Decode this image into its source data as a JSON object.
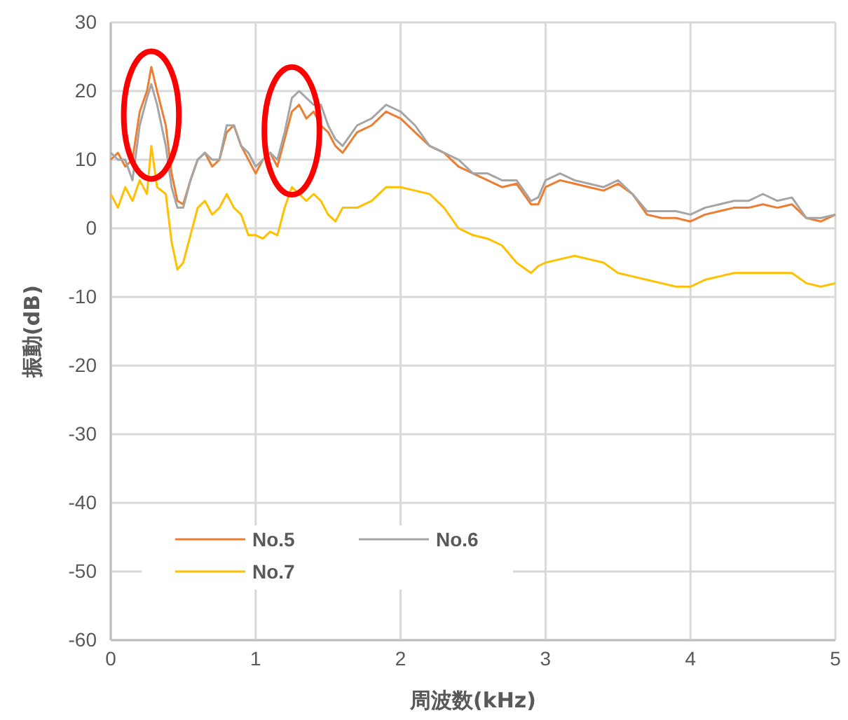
{
  "chart_data": {
    "type": "line",
    "xlabel": "周波数(kHz)",
    "ylabel": "振動(dB)",
    "x": [
      0,
      0.05,
      0.1,
      0.15,
      0.2,
      0.25,
      0.28,
      0.32,
      0.38,
      0.42,
      0.46,
      0.5,
      0.55,
      0.6,
      0.65,
      0.7,
      0.75,
      0.8,
      0.85,
      0.9,
      0.95,
      1.0,
      1.05,
      1.1,
      1.15,
      1.2,
      1.25,
      1.3,
      1.35,
      1.4,
      1.45,
      1.5,
      1.55,
      1.6,
      1.7,
      1.8,
      1.9,
      1.95,
      2.0,
      2.1,
      2.2,
      2.3,
      2.4,
      2.5,
      2.6,
      2.7,
      2.8,
      2.9,
      2.95,
      3.0,
      3.1,
      3.2,
      3.3,
      3.4,
      3.5,
      3.6,
      3.7,
      3.8,
      3.9,
      4.0,
      4.1,
      4.2,
      4.3,
      4.4,
      4.5,
      4.6,
      4.7,
      4.8,
      4.9,
      5.0
    ],
    "series": [
      {
        "name": "No.5",
        "color": "#ed7d31",
        "values": [
          10,
          11,
          9,
          10,
          17,
          20,
          23.5,
          20,
          15,
          8,
          4,
          3.5,
          7,
          10,
          11,
          9,
          10,
          14,
          15,
          12,
          10,
          8,
          10,
          11,
          9,
          13,
          17,
          18,
          16,
          17,
          15,
          14,
          12,
          11,
          14,
          15,
          17,
          16.5,
          16,
          14,
          12,
          11,
          9,
          8,
          7,
          6,
          6.5,
          3.5,
          3.5,
          6,
          7,
          6.5,
          6,
          5.5,
          6.5,
          5,
          2,
          1.5,
          1.5,
          1,
          2,
          2.5,
          3,
          3,
          3.5,
          3,
          3.5,
          1.5,
          1,
          2
        ]
      },
      {
        "name": "No.6",
        "color": "#a5a5a5",
        "values": [
          11,
          10,
          10,
          7,
          15,
          19,
          21,
          18,
          12,
          6,
          3,
          3,
          7,
          10,
          11,
          10,
          10,
          15,
          15,
          12,
          11,
          9,
          10,
          11,
          10,
          14,
          19,
          20,
          19,
          18,
          18,
          15,
          13,
          12,
          15,
          16,
          18,
          17.5,
          17,
          15,
          12,
          11,
          10,
          8,
          8,
          7,
          7,
          4,
          4.5,
          7,
          8,
          7,
          6.5,
          6,
          7,
          5,
          2.5,
          2.5,
          2.5,
          2,
          3,
          3.5,
          4,
          4,
          5,
          4,
          4.5,
          1.5,
          1.5,
          2
        ]
      },
      {
        "name": "No.7",
        "color": "#ffc000",
        "values": [
          5,
          3,
          6,
          4,
          7,
          5,
          12,
          6,
          5,
          -2,
          -6,
          -5,
          -1,
          3,
          4,
          2,
          3,
          5,
          3,
          2,
          -1,
          -1,
          -1.5,
          -0.5,
          -1,
          3,
          6,
          5,
          4,
          5,
          4,
          2,
          1,
          3,
          3,
          4,
          6,
          6,
          6,
          5.5,
          5,
          3,
          0,
          -1,
          -1.5,
          -2.5,
          -5,
          -6.5,
          -5.5,
          -5,
          -4.5,
          -4,
          -4.5,
          -5,
          -6.5,
          -7,
          -7.5,
          -8,
          -8.5,
          -8.5,
          -7.5,
          -7,
          -6.5,
          -6.5,
          -6.5,
          -6.5,
          -6.5,
          -8,
          -8.5,
          -8
        ]
      }
    ],
    "xlim": [
      0,
      5
    ],
    "xticks": [
      0,
      1,
      2,
      3,
      4,
      5
    ],
    "ylim": [
      -60,
      30
    ],
    "yticks": [
      -60,
      -50,
      -40,
      -30,
      -20,
      -10,
      0,
      10,
      20,
      30
    ],
    "grid": true,
    "legend": "bottom left",
    "marker": "none",
    "line_style": "solid"
  }
}
